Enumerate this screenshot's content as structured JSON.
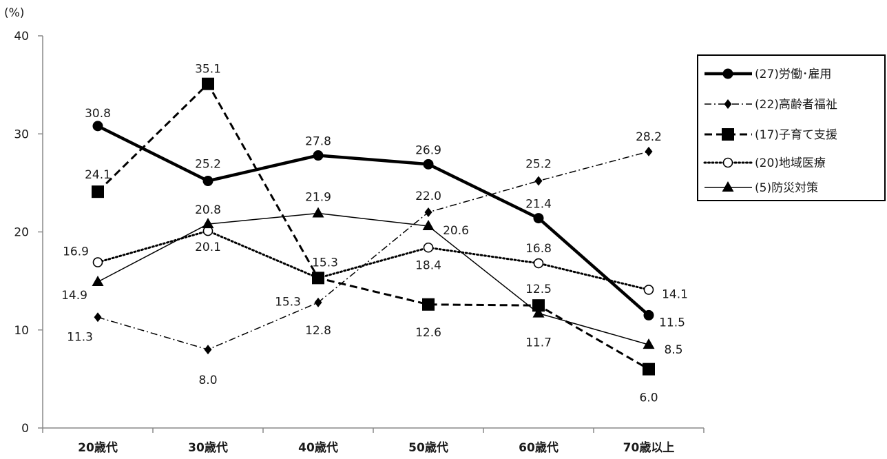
{
  "chart_data": {
    "type": "line",
    "unit_label": "(%)",
    "categories": [
      "20歳代",
      "30歳代",
      "40歳代",
      "50歳代",
      "60歳代",
      "70歳以上"
    ],
    "ylim": [
      0,
      40
    ],
    "yticks": [
      0,
      10,
      20,
      30,
      40
    ],
    "grid": false,
    "legend_position": "top-right",
    "series": [
      {
        "name": "(27)労働･雇用",
        "values": [
          30.8,
          25.2,
          27.8,
          26.9,
          21.4,
          11.5
        ],
        "line": "solid-bold",
        "marker": "circle-filled",
        "color": "#000000"
      },
      {
        "name": "(22)高齢者福祉",
        "values": [
          11.3,
          8.0,
          12.8,
          22.0,
          25.2,
          28.2
        ],
        "line": "dash-dot",
        "marker": "diamond-small",
        "color": "#000000"
      },
      {
        "name": "(17)子育て支援",
        "values": [
          24.1,
          35.1,
          15.3,
          12.6,
          12.5,
          6.0
        ],
        "line": "dashed-bold",
        "marker": "square-filled",
        "color": "#000000"
      },
      {
        "name": "(20)地域医療",
        "values": [
          16.9,
          20.1,
          15.3,
          18.4,
          16.8,
          14.1
        ],
        "line": "dotted",
        "marker": "circle-open",
        "color": "#000000"
      },
      {
        "name": "(5)防災対策",
        "values": [
          14.9,
          20.8,
          21.9,
          20.6,
          11.7,
          8.5
        ],
        "line": "solid-thin",
        "marker": "triangle-filled",
        "color": "#000000"
      }
    ]
  }
}
